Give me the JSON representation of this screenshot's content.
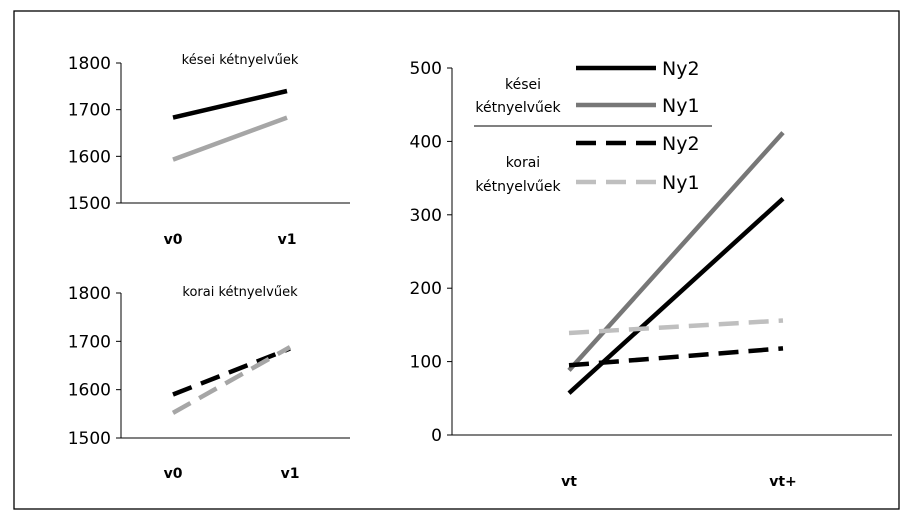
{
  "chart_data": [
    {
      "type": "line",
      "title": "kései kétnyelvűek",
      "categories": [
        "v0",
        "v1"
      ],
      "ylim": [
        1500,
        1800
      ],
      "yticks": [
        1500,
        1600,
        1700,
        1800
      ],
      "grid": false,
      "series": [
        {
          "values": [
            1683,
            1740
          ],
          "color": "#000000",
          "dash": false
        },
        {
          "values": [
            1593,
            1683
          ],
          "color": "#a6a6a6",
          "dash": false
        }
      ]
    },
    {
      "type": "line",
      "title": "korai kétnyelvűek",
      "categories": [
        "v0",
        "v1"
      ],
      "ylim": [
        1500,
        1800
      ],
      "yticks": [
        1500,
        1600,
        1700,
        1800
      ],
      "grid": false,
      "series": [
        {
          "values": [
            1590,
            1685
          ],
          "color": "#000000",
          "dash": true
        },
        {
          "values": [
            1552,
            1688
          ],
          "color": "#a6a6a6",
          "dash": true
        }
      ]
    },
    {
      "type": "line",
      "categories": [
        "vt",
        "vt+"
      ],
      "ylim": [
        0,
        500
      ],
      "yticks": [
        0,
        100,
        200,
        300,
        400,
        500
      ],
      "grid": false,
      "legend_position": "top-left",
      "legend_groups": [
        {
          "label_line1": "kései",
          "label_line2": "kétnyelvűek"
        },
        {
          "label_line1": "korai",
          "label_line2": "kétnyelvűek"
        }
      ],
      "series": [
        {
          "name": "Ny2",
          "group": 0,
          "values": [
            57,
            322
          ],
          "color": "#000000",
          "dash": false
        },
        {
          "name": "Ny1",
          "group": 0,
          "values": [
            88,
            412
          ],
          "color": "#777777",
          "dash": false
        },
        {
          "name": "Ny2",
          "group": 1,
          "values": [
            95,
            118
          ],
          "color": "#000000",
          "dash": true
        },
        {
          "name": "Ny1",
          "group": 1,
          "values": [
            139,
            156
          ],
          "color": "#bfbfbf",
          "dash": true
        }
      ]
    }
  ]
}
